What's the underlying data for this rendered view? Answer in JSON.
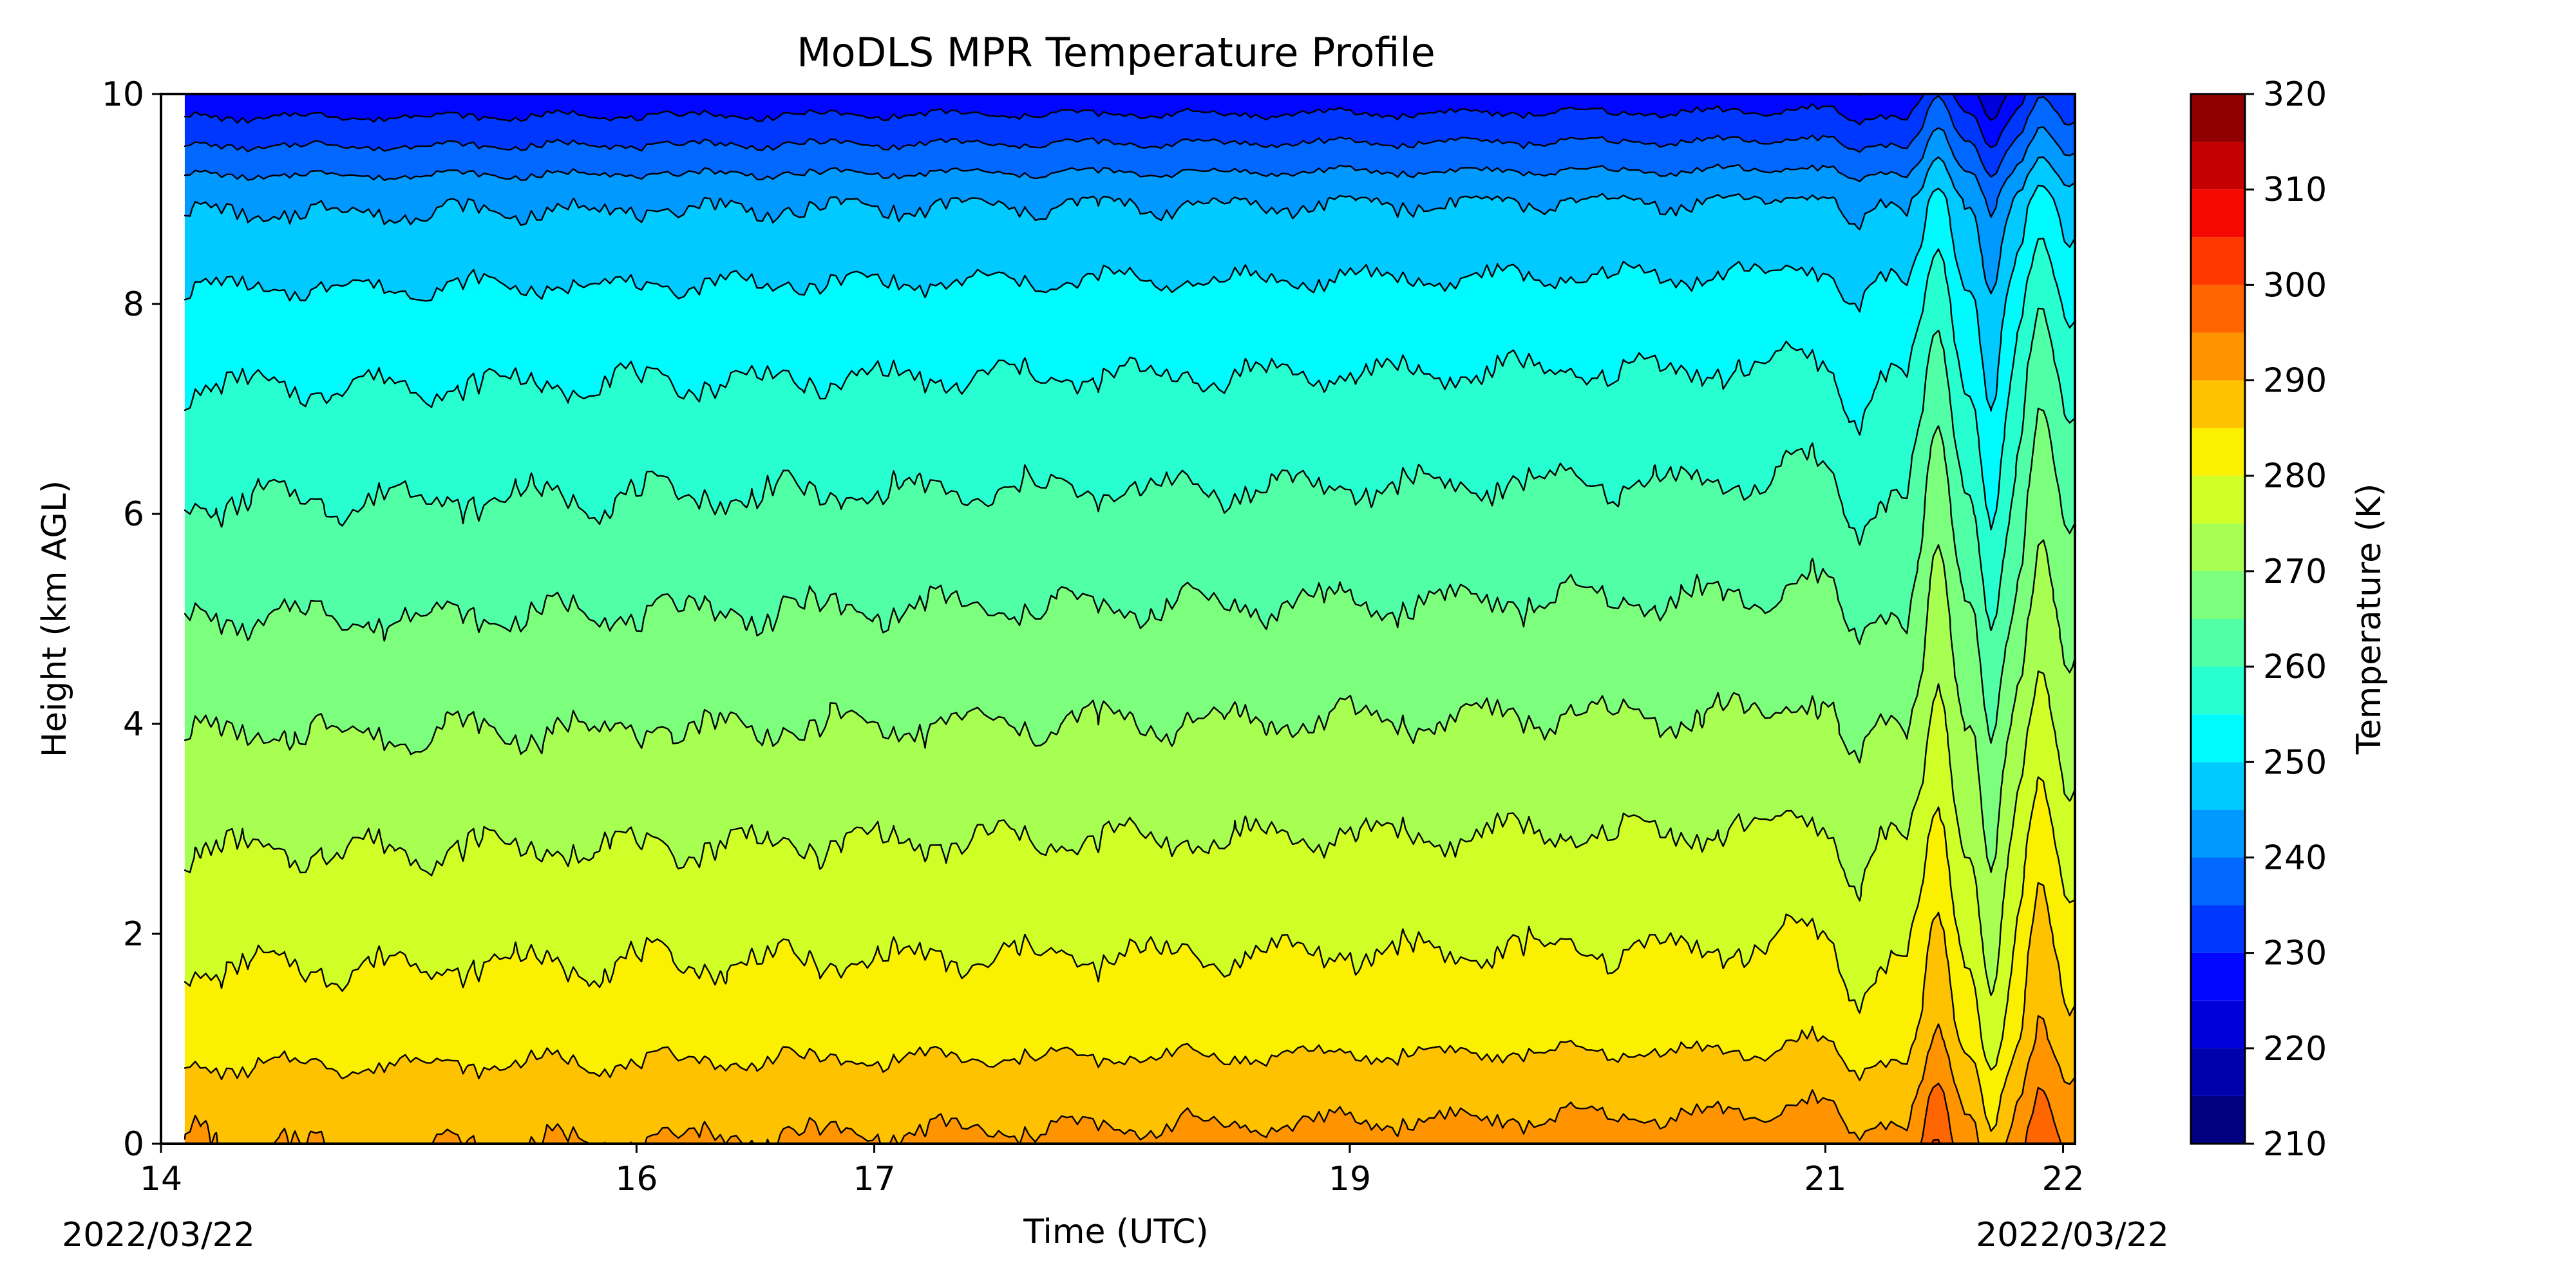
{
  "chart_data": {
    "type": "heatmap",
    "subtype": "filled-contour",
    "title": "MoDLS MPR Temperature Profile",
    "xlabel": "Time (UTC)",
    "ylabel": "Height (km AGL)",
    "colorbar_label": "Temperature (K)",
    "colormap": "jet",
    "x_ticks": [
      "14",
      "16",
      "17",
      "19",
      "21",
      "22"
    ],
    "x_tick_hours": [
      14,
      16,
      17,
      19,
      21,
      22
    ],
    "x_date_left": "2022/03/22",
    "x_date_right": "2022/03/22",
    "xlim_hours": [
      14.0,
      22.05
    ],
    "data_start_hour": 14.1,
    "y_ticks": [
      "0",
      "2",
      "4",
      "6",
      "8",
      "10"
    ],
    "ylim": [
      0,
      10
    ],
    "colorbar_ticks": [
      "210",
      "220",
      "230",
      "240",
      "250",
      "260",
      "270",
      "280",
      "290",
      "300",
      "310",
      "320"
    ],
    "levels": [
      210,
      215,
      220,
      225,
      230,
      235,
      240,
      245,
      250,
      255,
      260,
      265,
      270,
      275,
      280,
      285,
      290,
      295,
      300,
      305,
      310,
      315,
      320
    ],
    "level_colors": [
      "#000080",
      "#0000AD",
      "#0000DA",
      "#0006FF",
      "#0037FF",
      "#0068FF",
      "#0099FF",
      "#00CAFF",
      "#00FBFF",
      "#27FFD0",
      "#51FFA6",
      "#7BFF7C",
      "#A6FF51",
      "#D0FF27",
      "#FAF000",
      "#FFC200",
      "#FF9400",
      "#FF6500",
      "#FF3700",
      "#F60900",
      "#C40000",
      "#8F0000"
    ],
    "contour_heights_early_km": [
      0.08,
      0.6,
      1.35,
      2.2,
      3.1,
      4.0,
      4.9,
      5.7,
      6.5,
      7.2,
      7.9,
      8.6,
      9.2,
      9.8
    ],
    "contour_heights_mid_km": [
      0.05,
      0.85,
      1.65,
      2.5,
      3.35,
      4.2,
      5.0,
      5.85,
      6.6,
      7.35,
      8.05,
      8.75,
      9.4,
      10.0
    ],
    "surface_temperature_range_K": [
      282,
      302
    ],
    "series": [
      {
        "height_km": 0,
        "values_K": [
          287,
          289,
          289,
          290,
          292,
          299,
          302,
          293,
          300
        ]
      },
      {
        "height_km": 2,
        "values_K": [
          278,
          279,
          279,
          279,
          280,
          286,
          290,
          285,
          292
        ]
      },
      {
        "height_km": 4,
        "values_K": [
          270,
          271,
          271,
          271,
          272,
          277,
          281,
          276,
          282
        ]
      },
      {
        "height_km": 6,
        "values_K": [
          260,
          261,
          261,
          262,
          263,
          268,
          272,
          266,
          272
        ]
      },
      {
        "height_km": 8,
        "values_K": [
          250,
          250,
          251,
          251,
          252,
          257,
          261,
          256,
          260
        ]
      },
      {
        "height_km": 10,
        "values_K": [
          225,
          226,
          226,
          227,
          228,
          235,
          245,
          236,
          245
        ]
      }
    ],
    "series_time_hours": [
      14.1,
      16,
      17,
      19,
      21,
      21.4,
      21.55,
      21.75,
      22.05
    ]
  }
}
